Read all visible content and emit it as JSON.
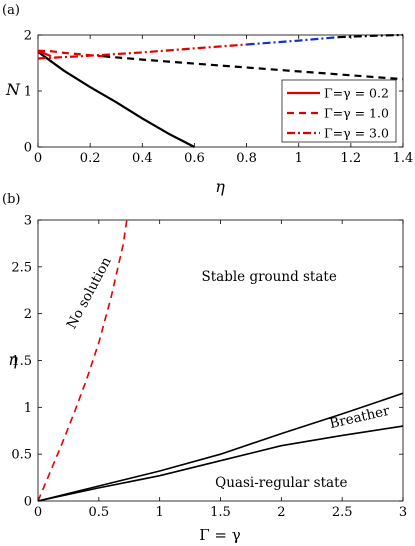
{
  "chart_data": [
    {
      "panel": "(a)",
      "type": "line",
      "xlabel": "η",
      "ylabel": "N",
      "xlim": [
        0,
        1.4
      ],
      "ylim": [
        0,
        2
      ],
      "xticks": [
        "0",
        "0.2",
        "0.4",
        "0.6",
        "0.8",
        "1",
        "1.2",
        "1.4"
      ],
      "yticks": [
        "0",
        "1",
        "2"
      ],
      "legend_position": "bottom-right",
      "series": [
        {
          "name": "Γ=γ = 0.2",
          "style": "solid",
          "color": "#000000",
          "x": [
            0,
            0.1,
            0.2,
            0.3,
            0.4,
            0.5,
            0.6
          ],
          "y": [
            1.7,
            1.36,
            1.07,
            0.8,
            0.51,
            0.24,
            0.0
          ]
        },
        {
          "name": "Γ=γ = 0.2",
          "style": "solid",
          "color": "#e00000",
          "x": [
            0,
            0.02,
            0.05
          ],
          "y": [
            1.7,
            1.68,
            1.62
          ]
        },
        {
          "name": "Γ=γ = 1.0",
          "style": "dashed",
          "color": "#e00000",
          "x": [
            0,
            0.05,
            0.1,
            0.15,
            0.2,
            0.25
          ],
          "y": [
            1.72,
            1.71,
            1.68,
            1.66,
            1.64,
            1.62
          ]
        },
        {
          "name": "Γ=γ = 1.0",
          "style": "dashed",
          "color": "#000000",
          "x": [
            0.25,
            0.4,
            0.6,
            0.8,
            1.0,
            1.2,
            1.4
          ],
          "y": [
            1.62,
            1.56,
            1.49,
            1.42,
            1.35,
            1.28,
            1.21
          ]
        },
        {
          "name": "Γ=γ = 3.0",
          "style": "dashdot",
          "color": "#e00000",
          "x": [
            0,
            0.2,
            0.4,
            0.6,
            0.8
          ],
          "y": [
            1.58,
            1.63,
            1.69,
            1.76,
            1.83
          ]
        },
        {
          "name": "Γ=γ = 3.0",
          "style": "dashdot",
          "color": "#1030d0",
          "x": [
            0.8,
            1.0,
            1.15
          ],
          "y": [
            1.83,
            1.9,
            1.96
          ]
        },
        {
          "name": "Γ=γ = 3.0",
          "style": "dashdot",
          "color": "#000000",
          "x": [
            1.15,
            1.3,
            1.4
          ],
          "y": [
            1.96,
            1.99,
            2.0
          ]
        }
      ]
    },
    {
      "panel": "(b)",
      "type": "line",
      "xlabel": "Γ = γ",
      "ylabel": "η",
      "xlim": [
        0,
        3
      ],
      "ylim": [
        0,
        3
      ],
      "xticks": [
        "0",
        "0.5",
        "1",
        "1.5",
        "2",
        "2.5",
        "3"
      ],
      "yticks": [
        "0",
        "0.5",
        "1",
        "1.5",
        "2",
        "2.5",
        "3"
      ],
      "series": [
        {
          "style": "dashed",
          "color": "#e00000",
          "x": [
            0,
            0.1,
            0.2,
            0.3,
            0.4,
            0.5,
            0.6,
            0.7,
            0.73
          ],
          "y": [
            0,
            0.31,
            0.62,
            0.95,
            1.3,
            1.69,
            2.17,
            2.74,
            3.0
          ]
        },
        {
          "style": "solid",
          "color": "#000000",
          "x": [
            0,
            0.5,
            1.0,
            1.5,
            2.0,
            2.5,
            3.0
          ],
          "y": [
            0,
            0.16,
            0.32,
            0.5,
            0.72,
            0.93,
            1.15
          ]
        },
        {
          "style": "solid",
          "color": "#000000",
          "x": [
            0,
            0.5,
            1.0,
            1.5,
            2.0,
            2.5,
            3.0
          ],
          "y": [
            0,
            0.14,
            0.27,
            0.43,
            0.59,
            0.7,
            0.8
          ]
        }
      ],
      "annotations": [
        {
          "text": "No solution",
          "x": 0.45,
          "y": 2.2,
          "rotation": -62
        },
        {
          "text": "Stable ground state",
          "x": 1.9,
          "y": 2.35
        },
        {
          "text": "Breather",
          "x": 2.65,
          "y": 0.85,
          "rotation": -13
        },
        {
          "text": "Quasi-regular state",
          "x": 2.0,
          "y": 0.15
        }
      ]
    }
  ]
}
